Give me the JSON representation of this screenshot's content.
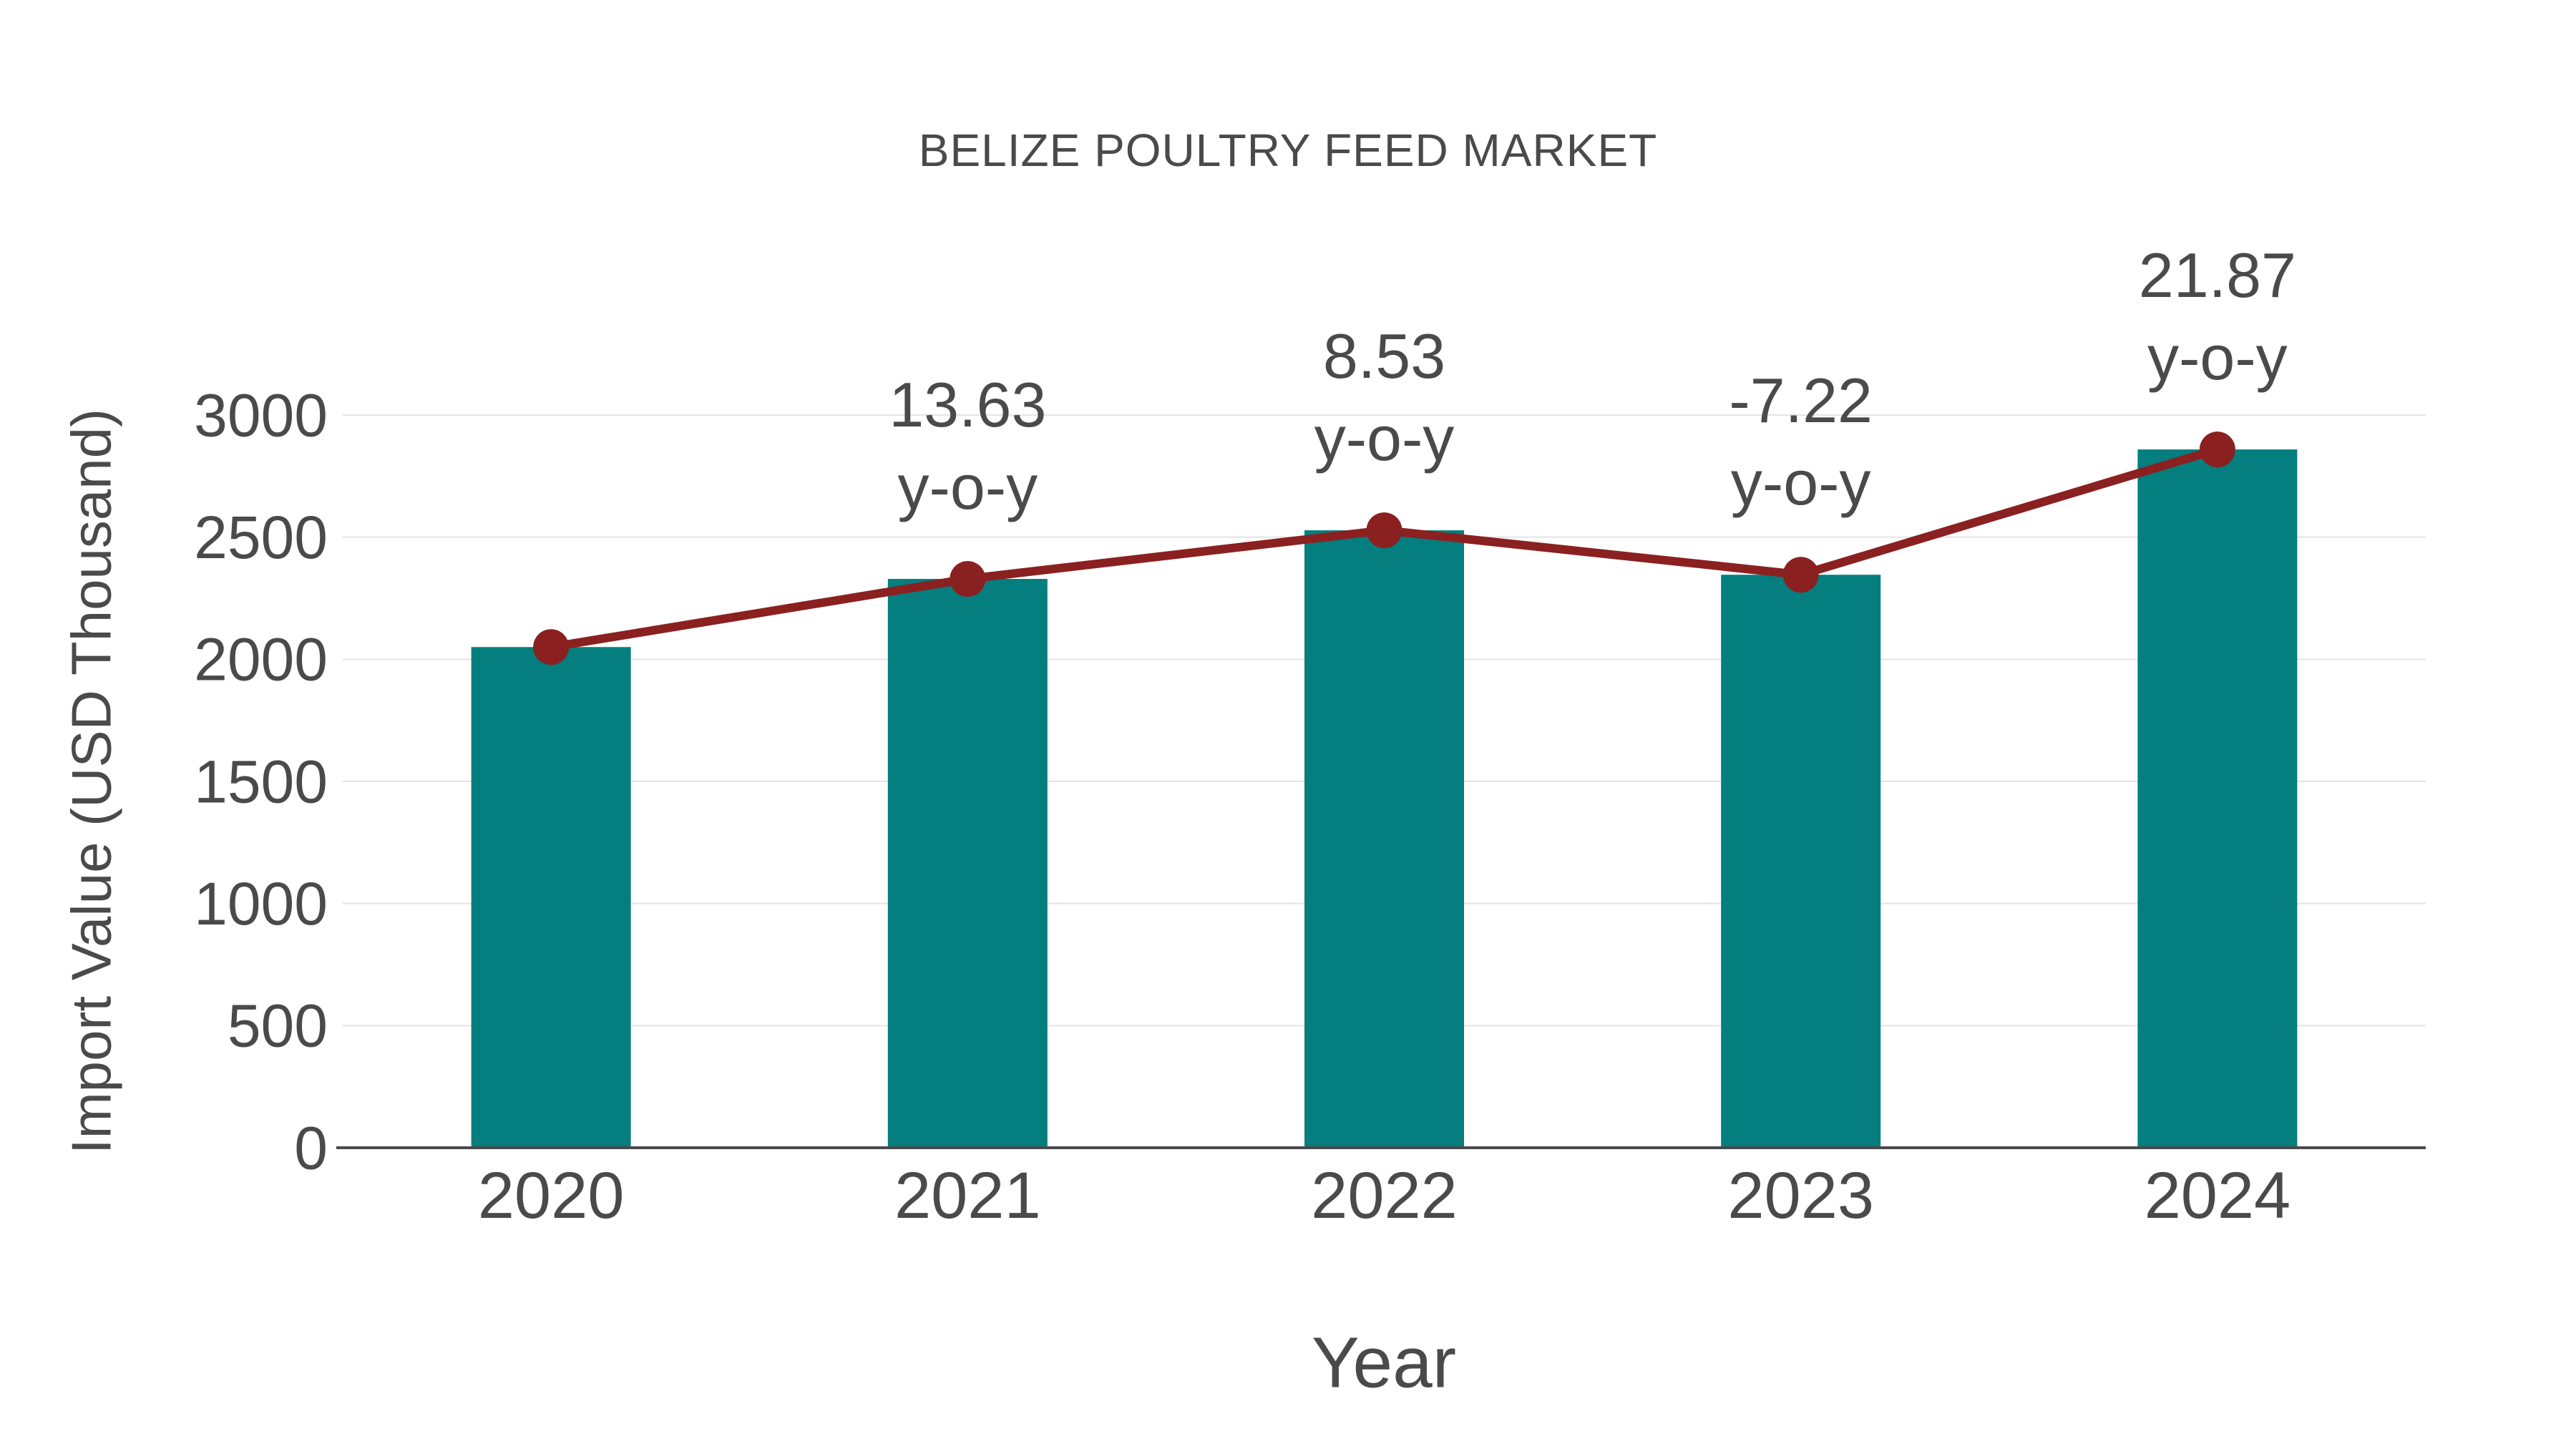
{
  "title": "BELIZE POULTRY FEED MARKET",
  "chart_data": {
    "type": "bar",
    "title": "BELIZE POULTRY FEED MARKET",
    "xlabel": "Year",
    "ylabel": "Import Value (USD Thousand)",
    "categories": [
      "2020",
      "2021",
      "2022",
      "2023",
      "2024"
    ],
    "series": [
      {
        "name": "Import Value",
        "type": "bar",
        "color": "#047e7e",
        "values": [
          2050,
          2329,
          2528,
          2346,
          2859
        ]
      },
      {
        "name": "y-o-y growth line",
        "type": "line",
        "color": "#8b2020",
        "marker": "circle",
        "values": [
          2050,
          2329,
          2528,
          2346,
          2859
        ]
      }
    ],
    "annotations": [
      {
        "category": "2021",
        "line1": "13.63",
        "line2": "y-o-y"
      },
      {
        "category": "2022",
        "line1": "8.53",
        "line2": "y-o-y"
      },
      {
        "category": "2023",
        "line1": "-7.22",
        "line2": "y-o-y"
      },
      {
        "category": "2024",
        "line1": "21.87",
        "line2": "y-o-y"
      }
    ],
    "ylim": [
      0,
      3000
    ],
    "yticks": [
      0,
      500,
      1000,
      1500,
      2000,
      2500,
      3000
    ],
    "grid": true,
    "legend": "none",
    "colors": {
      "bar": "#047e7e",
      "line": "#8b2020",
      "text": "#4a4a4a",
      "grid": "#e4e4e4",
      "axis": "#4a4a4a",
      "background": "#ffffff"
    }
  }
}
